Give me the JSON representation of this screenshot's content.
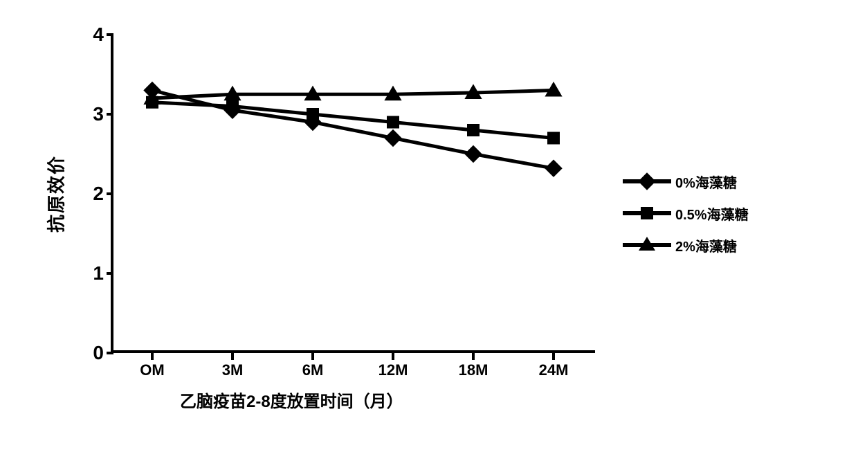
{
  "chart": {
    "type": "line",
    "background_color": "#ffffff",
    "axis_color": "#000000",
    "axis_line_width": 4,
    "grid": false,
    "ylabel": "抗原效价",
    "xlabel": "乙脑疫苗2-8度放置时间（月）",
    "ylabel_fontsize": 26,
    "xlabel_fontsize": 24,
    "tick_fontsize_y": 28,
    "tick_fontsize_x": 22,
    "label_fontweight": 900,
    "ylim": [
      0,
      4
    ],
    "yticks": [
      0,
      1,
      2,
      3,
      4
    ],
    "categories": [
      "OM",
      "3M",
      "6M",
      "12M",
      "18M",
      "24M"
    ],
    "line_width": 5,
    "marker_size": 18,
    "series": [
      {
        "name": "0%海藻糖",
        "marker": "diamond",
        "color": "#000000",
        "values": [
          3.3,
          3.05,
          2.9,
          2.7,
          2.5,
          2.32
        ]
      },
      {
        "name": "0.5%海藻糖",
        "marker": "square",
        "color": "#000000",
        "values": [
          3.15,
          3.1,
          3.0,
          2.9,
          2.8,
          2.7
        ]
      },
      {
        "name": "2%海藻糖",
        "marker": "triangle",
        "color": "#000000",
        "values": [
          3.2,
          3.25,
          3.25,
          3.25,
          3.27,
          3.3
        ]
      }
    ],
    "legend": {
      "position": "right",
      "fontsize": 20,
      "fontweight": 900
    }
  }
}
